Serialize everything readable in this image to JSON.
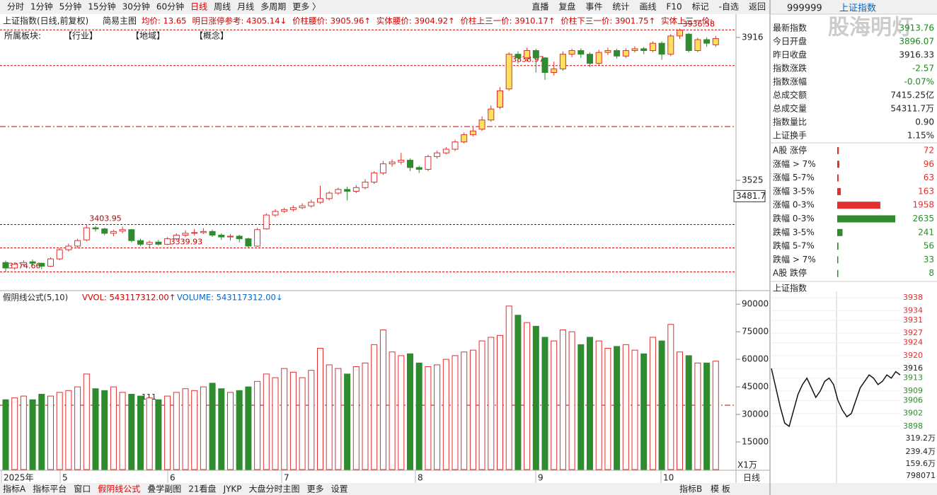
{
  "toolbar": {
    "periods": [
      "分时",
      "1分钟",
      "5分钟",
      "15分钟",
      "30分钟",
      "60分钟",
      "日线",
      "周线",
      "月线",
      "多周期",
      "更多 〉"
    ],
    "tools": [
      "直播",
      "复盘",
      "事件",
      "统计",
      "画线",
      "F10",
      "标记",
      "-自选",
      "返回"
    ]
  },
  "chart_data": {
    "type": "candlestick",
    "title": "上证指数(日线,前复权)",
    "main_indicator": "简易主图",
    "info": [
      "均价: 13.65",
      "明日涨停参考: 4305.14↓",
      "价柱腰价: 3905.96↑",
      "实体腰价: 3904.92↑",
      "价柱上三一价: 3910.17↑",
      "价柱下三一价: 3901.75↑",
      "实体上三一价:"
    ],
    "sector_label": "所属板块:",
    "sectors": [
      "【行业】",
      "【地域】",
      "【概念】"
    ],
    "candles": [
      [
        3300,
        3285,
        3305,
        3274
      ],
      [
        3285,
        3295,
        3300,
        3280
      ],
      [
        3295,
        3300,
        3306,
        3290
      ],
      [
        3302,
        3298,
        3308,
        3292
      ],
      [
        3298,
        3290,
        3300,
        3282
      ],
      [
        3290,
        3310,
        3314,
        3288
      ],
      [
        3310,
        3335,
        3340,
        3306
      ],
      [
        3335,
        3345,
        3352,
        3330
      ],
      [
        3345,
        3360,
        3365,
        3340
      ],
      [
        3362,
        3395,
        3404,
        3358
      ],
      [
        3395,
        3392,
        3400,
        3385
      ],
      [
        3392,
        3380,
        3395,
        3375
      ],
      [
        3380,
        3385,
        3390,
        3372
      ],
      [
        3386,
        3390,
        3398,
        3380
      ],
      [
        3390,
        3360,
        3392,
        3355
      ],
      [
        3360,
        3350,
        3365,
        3345
      ],
      [
        3350,
        3355,
        3360,
        3340
      ],
      [
        3356,
        3350,
        3362,
        3346
      ],
      [
        3350,
        3365,
        3370,
        3348
      ],
      [
        3365,
        3375,
        3380,
        3360
      ],
      [
        3375,
        3380,
        3388,
        3370
      ],
      [
        3380,
        3382,
        3392,
        3374
      ],
      [
        3382,
        3385,
        3394,
        3378
      ],
      [
        3385,
        3375,
        3390,
        3370
      ],
      [
        3375,
        3370,
        3380,
        3362
      ],
      [
        3370,
        3372,
        3378,
        3360
      ],
      [
        3372,
        3365,
        3376,
        3355
      ],
      [
        3365,
        3345,
        3368,
        3340
      ],
      [
        3345,
        3390,
        3395,
        3343
      ],
      [
        3392,
        3430,
        3435,
        3390
      ],
      [
        3430,
        3440,
        3446,
        3425
      ],
      [
        3440,
        3445,
        3450,
        3436
      ],
      [
        3445,
        3450,
        3456,
        3440
      ],
      [
        3450,
        3455,
        3462,
        3446
      ],
      [
        3455,
        3465,
        3472,
        3450
      ],
      [
        3465,
        3475,
        3510,
        3460
      ],
      [
        3475,
        3490,
        3495,
        3470
      ],
      [
        3490,
        3500,
        3505,
        3485
      ],
      [
        3500,
        3495,
        3508,
        3470
      ],
      [
        3495,
        3505,
        3512,
        3490
      ],
      [
        3505,
        3520,
        3528,
        3500
      ],
      [
        3520,
        3545,
        3550,
        3515
      ],
      [
        3545,
        3570,
        3578,
        3540
      ],
      [
        3570,
        3575,
        3582,
        3562
      ],
      [
        3575,
        3580,
        3600,
        3568
      ],
      [
        3580,
        3560,
        3585,
        3550
      ],
      [
        3560,
        3555,
        3565,
        3545
      ],
      [
        3555,
        3590,
        3595,
        3550
      ],
      [
        3590,
        3600,
        3606,
        3584
      ],
      [
        3600,
        3610,
        3616,
        3596
      ],
      [
        3610,
        3630,
        3636,
        3605
      ],
      [
        3630,
        3650,
        3656,
        3626
      ],
      [
        3650,
        3660,
        3672,
        3645
      ],
      [
        3665,
        3690,
        3700,
        3660
      ],
      [
        3690,
        3720,
        3730,
        3685
      ],
      [
        3725,
        3770,
        3780,
        3720
      ],
      [
        3775,
        3870,
        3875,
        3770
      ],
      [
        3870,
        3860,
        3878,
        3845
      ],
      [
        3860,
        3880,
        3888,
        3850
      ],
      [
        3880,
        3860,
        3885,
        3820
      ],
      [
        3860,
        3820,
        3862,
        3800
      ],
      [
        3820,
        3830,
        3850,
        3812
      ],
      [
        3830,
        3870,
        3878,
        3825
      ],
      [
        3870,
        3880,
        3885,
        3862
      ],
      [
        3880,
        3870,
        3886,
        3860
      ],
      [
        3870,
        3845,
        3875,
        3835
      ],
      [
        3845,
        3875,
        3882,
        3840
      ],
      [
        3875,
        3880,
        3888,
        3868
      ],
      [
        3880,
        3865,
        3885,
        3858
      ],
      [
        3865,
        3880,
        3886,
        3860
      ],
      [
        3880,
        3885,
        3892,
        3875
      ],
      [
        3885,
        3880,
        3890,
        3870
      ],
      [
        3880,
        3900,
        3905,
        3876
      ],
      [
        3900,
        3870,
        3905,
        3855
      ],
      [
        3870,
        3920,
        3925,
        3865
      ],
      [
        3920,
        3936,
        3940,
        3912
      ],
      [
        3925,
        3880,
        3928,
        3875
      ],
      [
        3880,
        3910,
        3915,
        3876
      ],
      [
        3910,
        3900,
        3916,
        3890
      ],
      [
        3896,
        3913,
        3920,
        3890
      ]
    ],
    "ylim": [
      3225,
      3941
    ],
    "yticks": [
      3916,
      3525
    ],
    "cursor_value": 3481.7,
    "annotations": [
      3936.58,
      3838.97,
      3403.95,
      3339.93,
      3274.66
    ],
    "x_labels": [
      "2025年",
      "5",
      "6",
      "7",
      "8",
      "9",
      "10"
    ],
    "period": "日线",
    "colors": {
      "up": "#e03030",
      "down": "#2e8b2e"
    }
  },
  "volume_panel": {
    "type": "bar",
    "formula": "假阴线公式(5,10)",
    "vvol": "VVOL: 543117312.00↑",
    "volume": "VOLUME: 543117312.00↓",
    "marker": "111",
    "values": [
      38000,
      39000,
      40000,
      38000,
      41000,
      40000,
      42000,
      43000,
      45000,
      52000,
      44000,
      43000,
      45000,
      42000,
      41000,
      40000,
      39000,
      38000,
      40000,
      42000,
      44000,
      43000,
      45000,
      47000,
      44000,
      42000,
      43000,
      45000,
      48000,
      52000,
      50000,
      55000,
      53000,
      50000,
      54000,
      66000,
      57000,
      55000,
      52000,
      56000,
      58000,
      68000,
      76000,
      64000,
      62000,
      63000,
      58000,
      56000,
      57000,
      60000,
      62000,
      64000,
      65000,
      70000,
      72000,
      73000,
      89000,
      84000,
      80000,
      78000,
      72000,
      70000,
      76000,
      75000,
      68000,
      72000,
      70000,
      66000,
      67000,
      68000,
      65000,
      63000,
      72000,
      70000,
      79000,
      64000,
      62000,
      58000,
      58000,
      59000
    ],
    "ylim": [
      0,
      97000
    ],
    "yticks": [
      15000,
      30000,
      45000,
      60000,
      75000,
      90000
    ],
    "unit": "X1万"
  },
  "quote_panel": {
    "code": "999999",
    "name": "上证指数",
    "watermark": "股海明灯",
    "rows": [
      {
        "label": "最新指数",
        "value": "3913.76"
      },
      {
        "label": "今日开盘",
        "value": "3896.07"
      },
      {
        "label": "昨日收盘",
        "value": "3916.33"
      },
      {
        "label": "指数涨跌",
        "value": "-2.57"
      },
      {
        "label": "指数涨幅",
        "value": "-0.07%"
      },
      {
        "label": "总成交额",
        "value": "7415.25亿"
      },
      {
        "label": "总成交量",
        "value": "54311.7万"
      },
      {
        "label": "指数量比",
        "value": "0.90"
      },
      {
        "label": "上证换手",
        "value": "1.15%"
      }
    ],
    "breadth": [
      {
        "label": "A股 涨停",
        "value": 72
      },
      {
        "label": "涨幅 > 7%",
        "value": 96
      },
      {
        "label": "涨幅 5-7%",
        "value": 63
      },
      {
        "label": "涨幅 3-5%",
        "value": 163
      },
      {
        "label": "涨幅 0-3%",
        "value": 1958
      },
      {
        "label": "跌幅 0-3%",
        "value": 2635
      },
      {
        "label": "跌幅 3-5%",
        "value": 241
      },
      {
        "label": "跌幅 5-7%",
        "value": 56
      },
      {
        "label": "跌幅 > 7%",
        "value": 33
      },
      {
        "label": "A股 跌停",
        "value": 8
      }
    ]
  },
  "intraday": {
    "title": "上证指数",
    "index": [
      3916,
      3910,
      3904,
      3899,
      3898,
      3903,
      3908,
      3911,
      3913,
      3910,
      3907,
      3909,
      3912,
      3913,
      3911,
      3906,
      3903,
      3901,
      3902,
      3906,
      3910,
      3912,
      3914,
      3913,
      3911,
      3912,
      3914,
      3913,
      3915,
      3914
    ],
    "ylim": [
      3896,
      3940
    ],
    "yticks": [
      3938,
      3934,
      3931,
      3927,
      3924,
      3920,
      3916,
      3913,
      3909,
      3906,
      3902,
      3898
    ],
    "volume_ticks": [
      "319.2万",
      "239.4万",
      "159.6万",
      "798071"
    ]
  },
  "bottom_tabs": [
    "指标A",
    "指标平台",
    "窗口",
    "假阴线公式",
    "叠学副图",
    "21看盘",
    "JYKP",
    "大盘分时主图",
    "更多",
    "设置"
  ],
  "template_tabs": [
    "指标B",
    "模 板"
  ]
}
